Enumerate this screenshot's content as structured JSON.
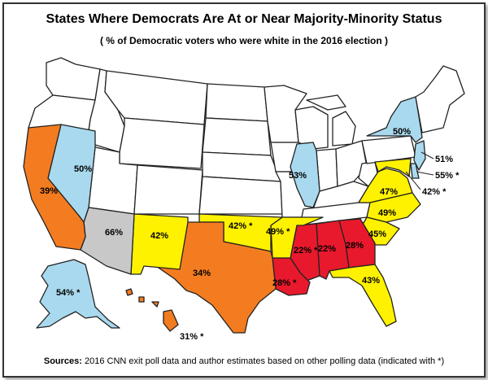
{
  "title": "States Where Democrats Are At or Near Majority-Minority Status",
  "subtitle": "( % of Democratic voters who were white in the 2016 election )",
  "source_label": "Sources:",
  "source_text": "2016 CNN exit poll data and author estimates based on other polling data (indicated with *)",
  "colors": {
    "red": "#e8192c",
    "orange": "#f47c20",
    "yellow": "#fff200",
    "gray": "#c8c8c8",
    "light_blue": "#a9d9ee",
    "white": "#ffffff"
  },
  "states": [
    {
      "state": "California",
      "label": "39%",
      "color_key": "orange"
    },
    {
      "state": "Nevada",
      "label": "50%",
      "color_key": "light_blue"
    },
    {
      "state": "Arizona",
      "label": "66%",
      "color_key": "gray"
    },
    {
      "state": "New Mexico",
      "label": "42%",
      "color_key": "yellow"
    },
    {
      "state": "Texas",
      "label": "34%",
      "color_key": "orange"
    },
    {
      "state": "Oklahoma",
      "label": "42% *",
      "color_key": "yellow"
    },
    {
      "state": "Arkansas",
      "label": "49% *",
      "color_key": "yellow"
    },
    {
      "state": "Louisiana",
      "label": "28% *",
      "color_key": "red"
    },
    {
      "state": "Mississippi",
      "label": "22% *",
      "color_key": "red"
    },
    {
      "state": "Alabama",
      "label": "22%",
      "color_key": "red"
    },
    {
      "state": "Georgia",
      "label": "28%",
      "color_key": "red"
    },
    {
      "state": "Florida",
      "label": "43%",
      "color_key": "yellow"
    },
    {
      "state": "South Carolina",
      "label": "45%",
      "color_key": "yellow"
    },
    {
      "state": "North Carolina",
      "label": "49%",
      "color_key": "yellow"
    },
    {
      "state": "Virginia",
      "label": "47%",
      "color_key": "yellow"
    },
    {
      "state": "Illinois",
      "label": "53%",
      "color_key": "light_blue"
    },
    {
      "state": "New York",
      "label": "50%",
      "color_key": "light_blue"
    },
    {
      "state": "New Jersey",
      "label": "51%",
      "color_key": "light_blue"
    },
    {
      "state": "Delaware",
      "label": "55% *",
      "color_key": "light_blue"
    },
    {
      "state": "Maryland",
      "label": "42% *",
      "color_key": "yellow"
    },
    {
      "state": "Alaska",
      "label": "54% *",
      "color_key": "light_blue"
    },
    {
      "state": "Hawaii",
      "label": "31% *",
      "color_key": "orange"
    }
  ]
}
